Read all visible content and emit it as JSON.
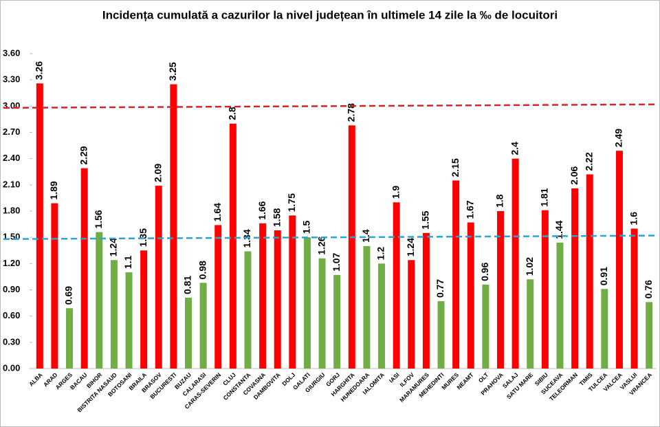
{
  "chart_data": {
    "type": "bar",
    "title": "Incidența cumulată a cazurilor la nivel județean în ultimele 14 zile la ‰ de locuitori",
    "categories": [
      "ALBA",
      "ARAD",
      "ARGES",
      "BACAU",
      "BIHOR",
      "BISTRITA NASAUD",
      "BOTOSANI",
      "BRAILA",
      "BRASOV",
      "BUCURESTI",
      "BUZAU",
      "CALARASI",
      "CARAS-SEVERIN",
      "CLUJ",
      "CONSTANTA",
      "COVASNA",
      "DAMBOVITA",
      "DOLJ",
      "GALATI",
      "GIURGIU",
      "GORJ",
      "HARGHITA",
      "HUNEDOARA",
      "IALOMITA",
      "IASI",
      "ILFOV",
      "MARAMURES",
      "MEHEDINTI",
      "MURES",
      "NEAMT",
      "OLT",
      "PRAHOVA",
      "SALAJ",
      "SATU MARE",
      "SIBIU",
      "SUCEAVA",
      "TELEORMAN",
      "TIMIS",
      "TULCEA",
      "VALCEA",
      "VASLUI",
      "VRANCEA"
    ],
    "values": [
      3.26,
      1.89,
      0.69,
      2.29,
      1.56,
      1.24,
      1.1,
      1.35,
      2.09,
      3.25,
      0.81,
      0.98,
      1.64,
      2.8,
      1.34,
      1.66,
      1.58,
      1.75,
      1.5,
      1.26,
      1.07,
      2.78,
      1.4,
      1.2,
      1.9,
      1.24,
      1.55,
      0.77,
      2.15,
      1.67,
      0.96,
      1.8,
      2.4,
      1.02,
      1.81,
      1.44,
      2.06,
      2.22,
      0.91,
      2.49,
      1.6,
      0.76
    ],
    "colors": [
      "#ff0000",
      "#ff0000",
      "#70ad47",
      "#ff0000",
      "#70ad47",
      "#70ad47",
      "#70ad47",
      "#ff0000",
      "#ff0000",
      "#ff0000",
      "#70ad47",
      "#70ad47",
      "#ff0000",
      "#ff0000",
      "#70ad47",
      "#ff0000",
      "#ff0000",
      "#ff0000",
      "#70ad47",
      "#70ad47",
      "#70ad47",
      "#ff0000",
      "#70ad47",
      "#70ad47",
      "#ff0000",
      "#ff0000",
      "#ff0000",
      "#70ad47",
      "#ff0000",
      "#ff0000",
      "#70ad47",
      "#ff0000",
      "#ff0000",
      "#70ad47",
      "#ff0000",
      "#70ad47",
      "#ff0000",
      "#ff0000",
      "#70ad47",
      "#ff0000",
      "#ff0000",
      "#70ad47"
    ],
    "ylim": [
      0,
      3.6
    ],
    "yticks": [
      {
        "value": 0,
        "label": "0.00"
      },
      {
        "value": 0.3,
        "label": "0.30"
      },
      {
        "value": 0.6,
        "label": "0.60"
      },
      {
        "value": 0.9,
        "label": "0.90"
      },
      {
        "value": 1.2,
        "label": "1.20"
      },
      {
        "value": 1.5,
        "label": "1.50"
      },
      {
        "value": 1.8,
        "label": "1.80"
      },
      {
        "value": 2.1,
        "label": "2.10"
      },
      {
        "value": 2.4,
        "label": "2.40"
      },
      {
        "value": 2.7,
        "label": "2.70"
      },
      {
        "value": 3,
        "label": "3.00"
      },
      {
        "value": 3.3,
        "label": "3.30"
      },
      {
        "value": 3.6,
        "label": "3.60"
      }
    ],
    "reference_lines": [
      {
        "color": "#e02020",
        "values": [
          2.98,
          3.02
        ]
      },
      {
        "color": "#20a8d8",
        "values": [
          1.48,
          1.52
        ]
      }
    ]
  }
}
